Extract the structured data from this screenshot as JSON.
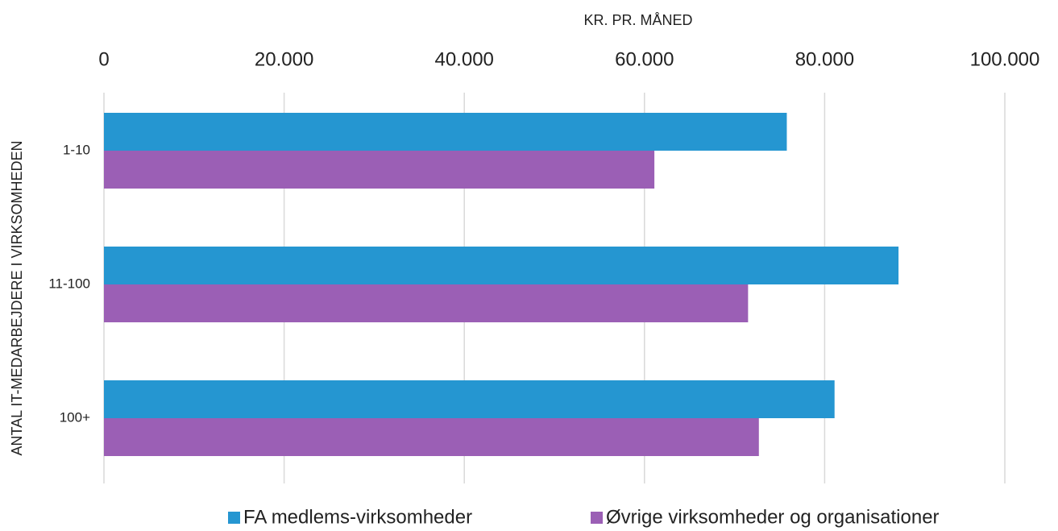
{
  "chart_data": {
    "type": "hbar",
    "x_label": "KR. PR. MÅNED",
    "y_label": "ANTAL IT-MEDARBEJDERE I VIRKSOMHEDEN",
    "categories": [
      "1-10",
      "11-100",
      "100+"
    ],
    "series": [
      {
        "name": "FA medlems-virksomheder",
        "color": "#2596d1",
        "values": [
          75800,
          88200,
          81100
        ]
      },
      {
        "name": "Øvrige virksomheder og organisationer",
        "color": "#9b5fb5",
        "values": [
          61100,
          71500,
          72700
        ]
      }
    ],
    "xlim": [
      0,
      100000
    ],
    "xticks": [
      0,
      {
        "value": 20000,
        "label": "20.000"
      },
      {
        "value": 40000,
        "label": "40.000"
      },
      {
        "value": 60000,
        "label": "60.000"
      },
      {
        "value": 80000,
        "label": "80.000"
      },
      {
        "value": 100000,
        "label": "100.000"
      }
    ],
    "grid": true,
    "legend": "bottom"
  }
}
